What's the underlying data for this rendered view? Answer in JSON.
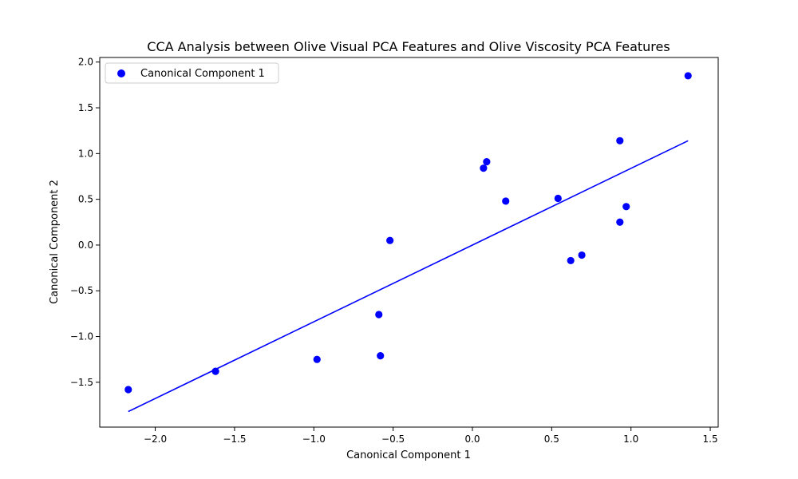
{
  "chart_data": {
    "type": "scatter",
    "title": "CCA Analysis between Olive Visual PCA Features and Olive Viscosity PCA Features",
    "xlabel": "Canonical Component 1",
    "ylabel": "Canonical Component 2",
    "xlim": [
      -2.35,
      1.55
    ],
    "ylim": [
      -1.99,
      2.05
    ],
    "xticks": [
      -2.0,
      -1.5,
      -1.0,
      -0.5,
      0.0,
      0.5,
      1.0,
      1.5
    ],
    "xtick_labels": [
      "−2.0",
      "−1.5",
      "−1.0",
      "−0.5",
      "0.0",
      "0.5",
      "1.0",
      "1.5"
    ],
    "yticks": [
      -1.5,
      -1.0,
      -0.5,
      0.0,
      0.5,
      1.0,
      1.5,
      2.0
    ],
    "ytick_labels": [
      "−1.5",
      "−1.0",
      "−0.5",
      "0.0",
      "0.5",
      "1.0",
      "1.5",
      "2.0"
    ],
    "grid": false,
    "legend": {
      "position": "top-left",
      "entries": [
        "Canonical Component 1"
      ]
    },
    "series": [
      {
        "name": "Canonical Component 1",
        "color": "#0000ff",
        "points": [
          {
            "x": -2.17,
            "y": -1.58
          },
          {
            "x": -1.62,
            "y": -1.38
          },
          {
            "x": -0.98,
            "y": -1.25
          },
          {
            "x": -0.59,
            "y": -0.76
          },
          {
            "x": -0.58,
            "y": -1.21
          },
          {
            "x": -0.52,
            "y": 0.05
          },
          {
            "x": 0.07,
            "y": 0.84
          },
          {
            "x": 0.09,
            "y": 0.91
          },
          {
            "x": 0.21,
            "y": 0.48
          },
          {
            "x": 0.54,
            "y": 0.51
          },
          {
            "x": 0.62,
            "y": -0.17
          },
          {
            "x": 0.69,
            "y": -0.11
          },
          {
            "x": 0.93,
            "y": 1.14
          },
          {
            "x": 0.93,
            "y": 0.25
          },
          {
            "x": 0.97,
            "y": 0.42
          },
          {
            "x": 1.36,
            "y": 1.85
          }
        ]
      }
    ],
    "fit_line": {
      "color": "#0000ff",
      "x": [
        -2.17,
        1.36
      ],
      "y": [
        -1.82,
        1.14
      ]
    }
  }
}
